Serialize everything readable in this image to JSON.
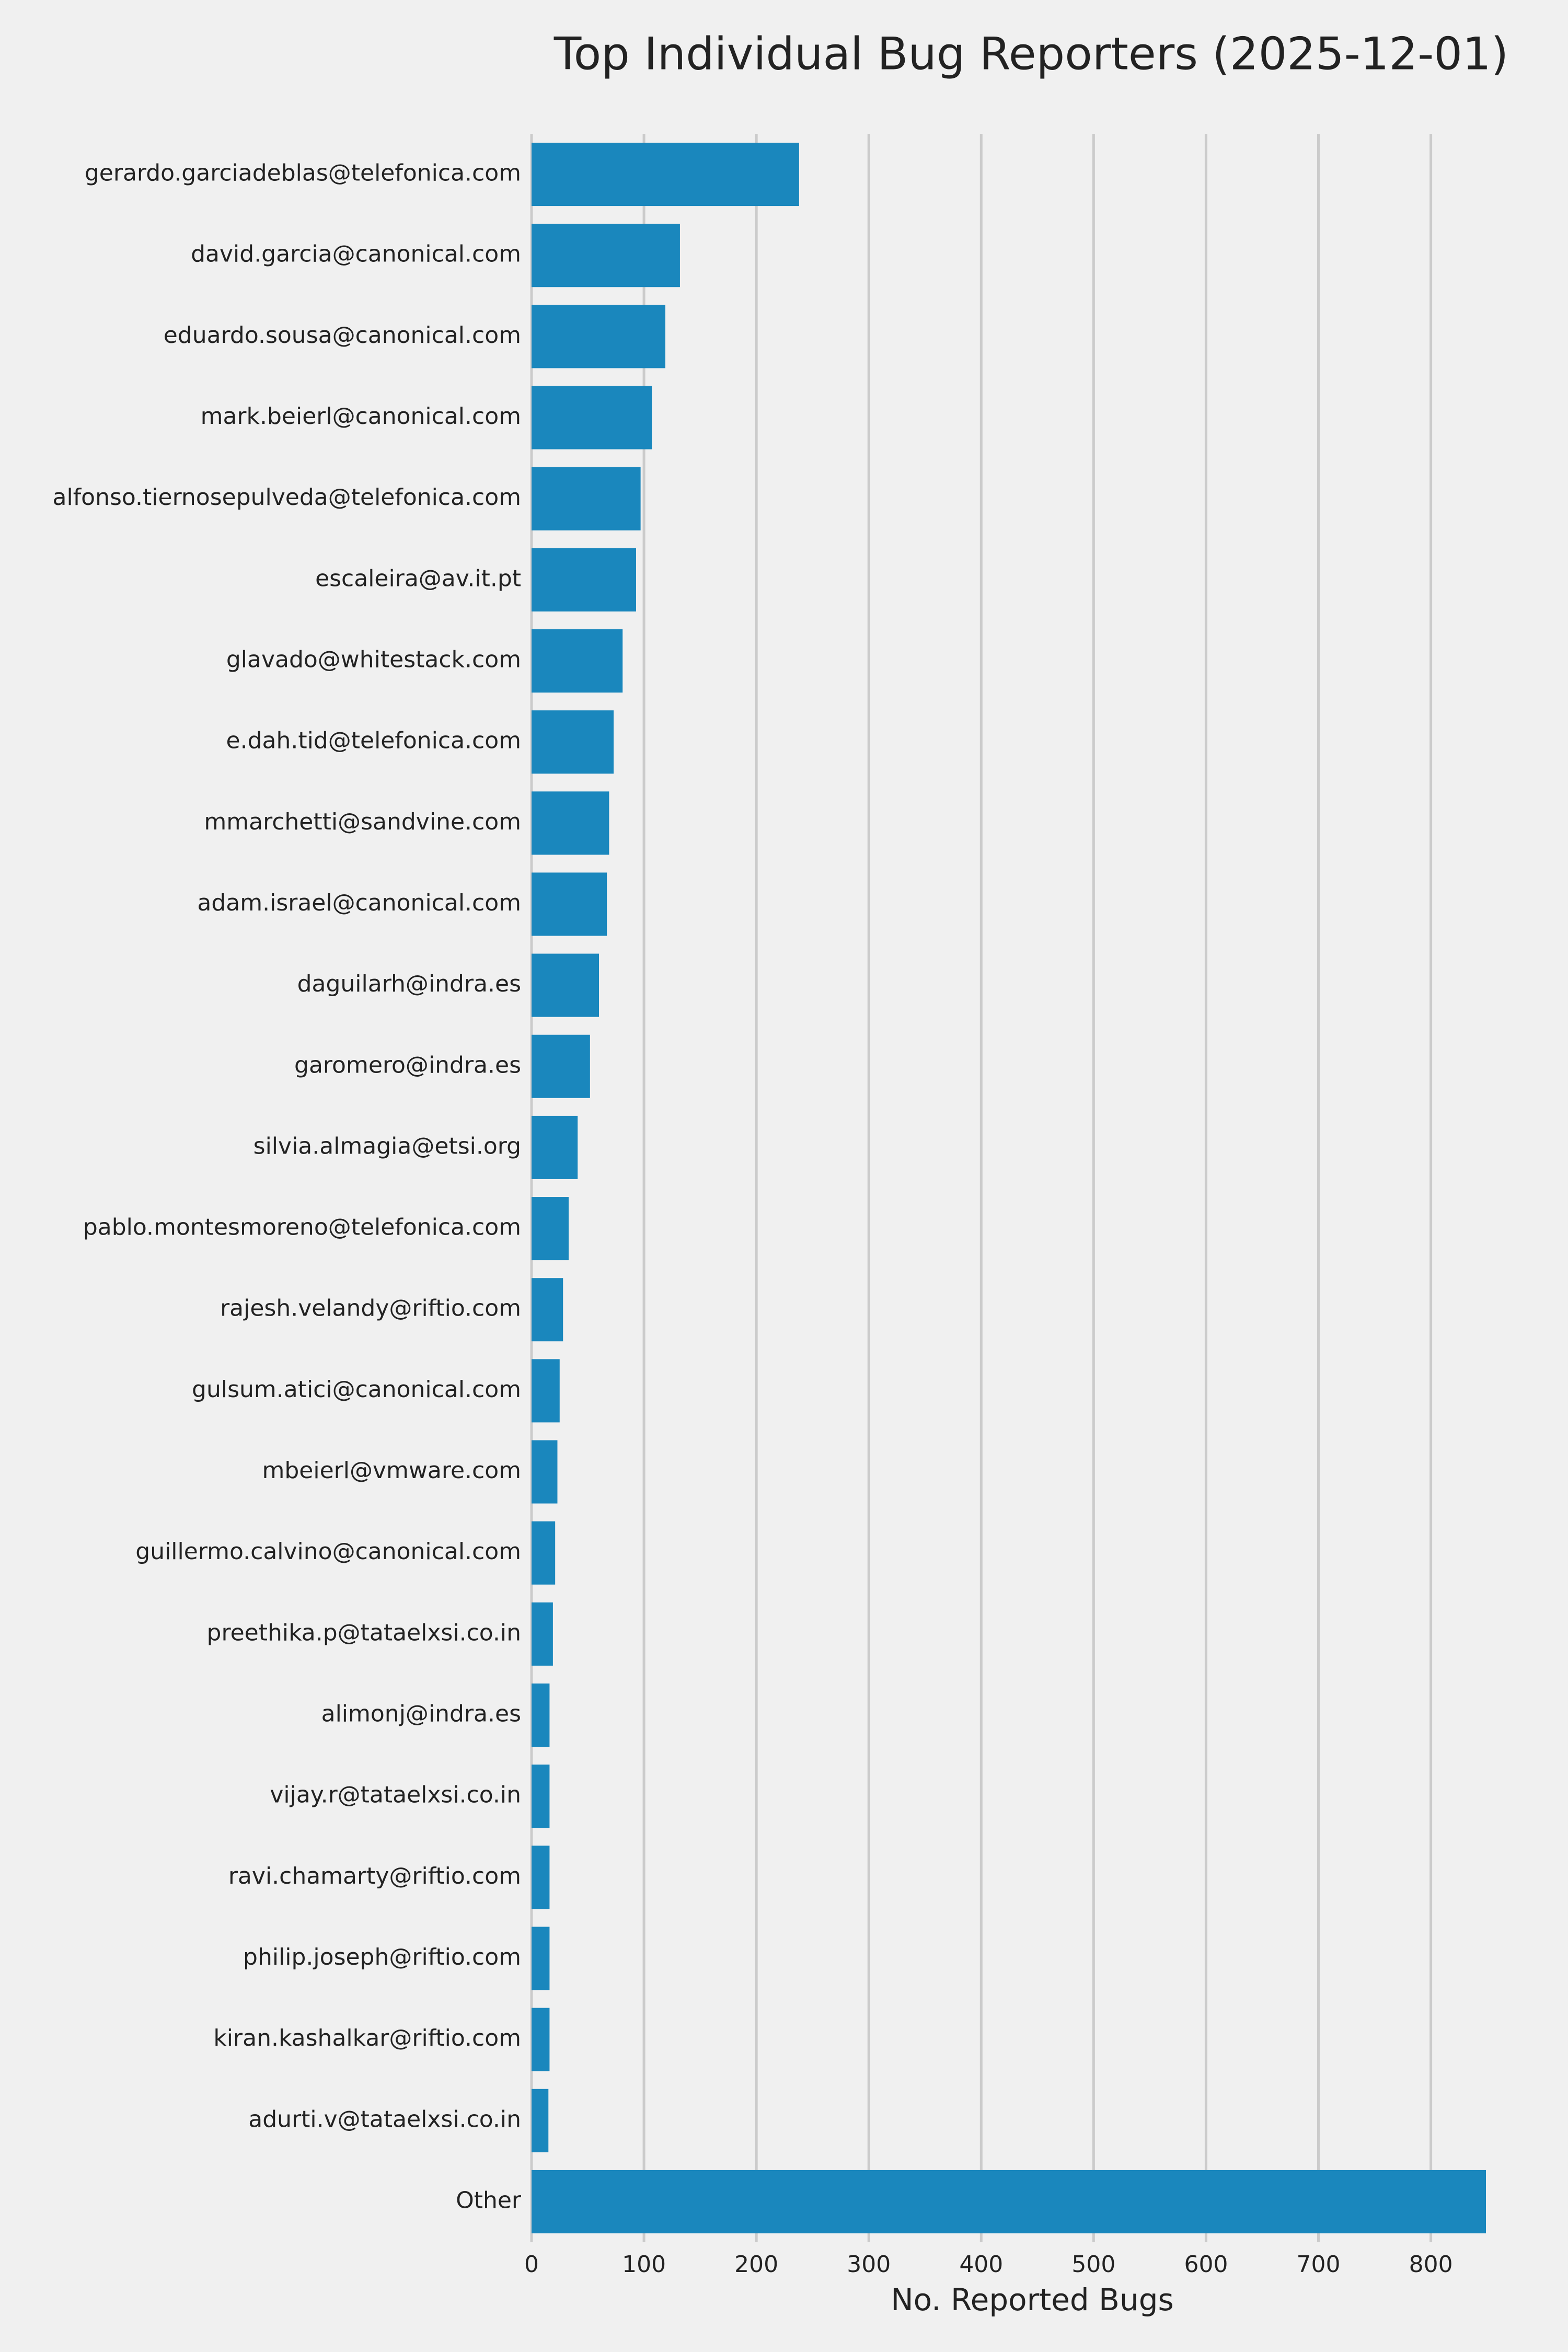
{
  "chart_data": {
    "type": "barh",
    "title": "Top Individual Bug Reporters (2025-12-01)",
    "x_label": "No. Reported Bugs",
    "categories": [
      "gerardo.garciadeblas@telefonica.com",
      "david.garcia@canonical.com",
      "eduardo.sousa@canonical.com",
      "mark.beierl@canonical.com",
      "alfonso.tiernosepulveda@telefonica.com",
      "escaleira@av.it.pt",
      "glavado@whitestack.com",
      "e.dah.tid@telefonica.com",
      "mmarchetti@sandvine.com",
      "adam.israel@canonical.com",
      "daguilarh@indra.es",
      "garomero@indra.es",
      "silvia.almagia@etsi.org",
      "pablo.montesmoreno@telefonica.com",
      "rajesh.velandy@riftio.com",
      "gulsum.atici@canonical.com",
      "mbeierl@vmware.com",
      "guillermo.calvino@canonical.com",
      "preethika.p@tataelxsi.co.in",
      "alimonj@indra.es",
      "vijay.r@tataelxsi.co.in",
      "ravi.chamarty@riftio.com",
      "philip.joseph@riftio.com",
      "kiran.kashalkar@riftio.com",
      "adurti.v@tataelxsi.co.in",
      "Other"
    ],
    "values": [
      238,
      132,
      119,
      107,
      97,
      93,
      81,
      73,
      69,
      67,
      60,
      52,
      41,
      33,
      28,
      25,
      23,
      21,
      19,
      16,
      16,
      16,
      16,
      16,
      15,
      849
    ],
    "color": "#1a87bd",
    "xlim": [
      0,
      849
    ],
    "xticks": [
      0,
      100,
      200,
      300,
      400,
      500,
      600,
      700,
      800
    ],
    "grid": true
  }
}
